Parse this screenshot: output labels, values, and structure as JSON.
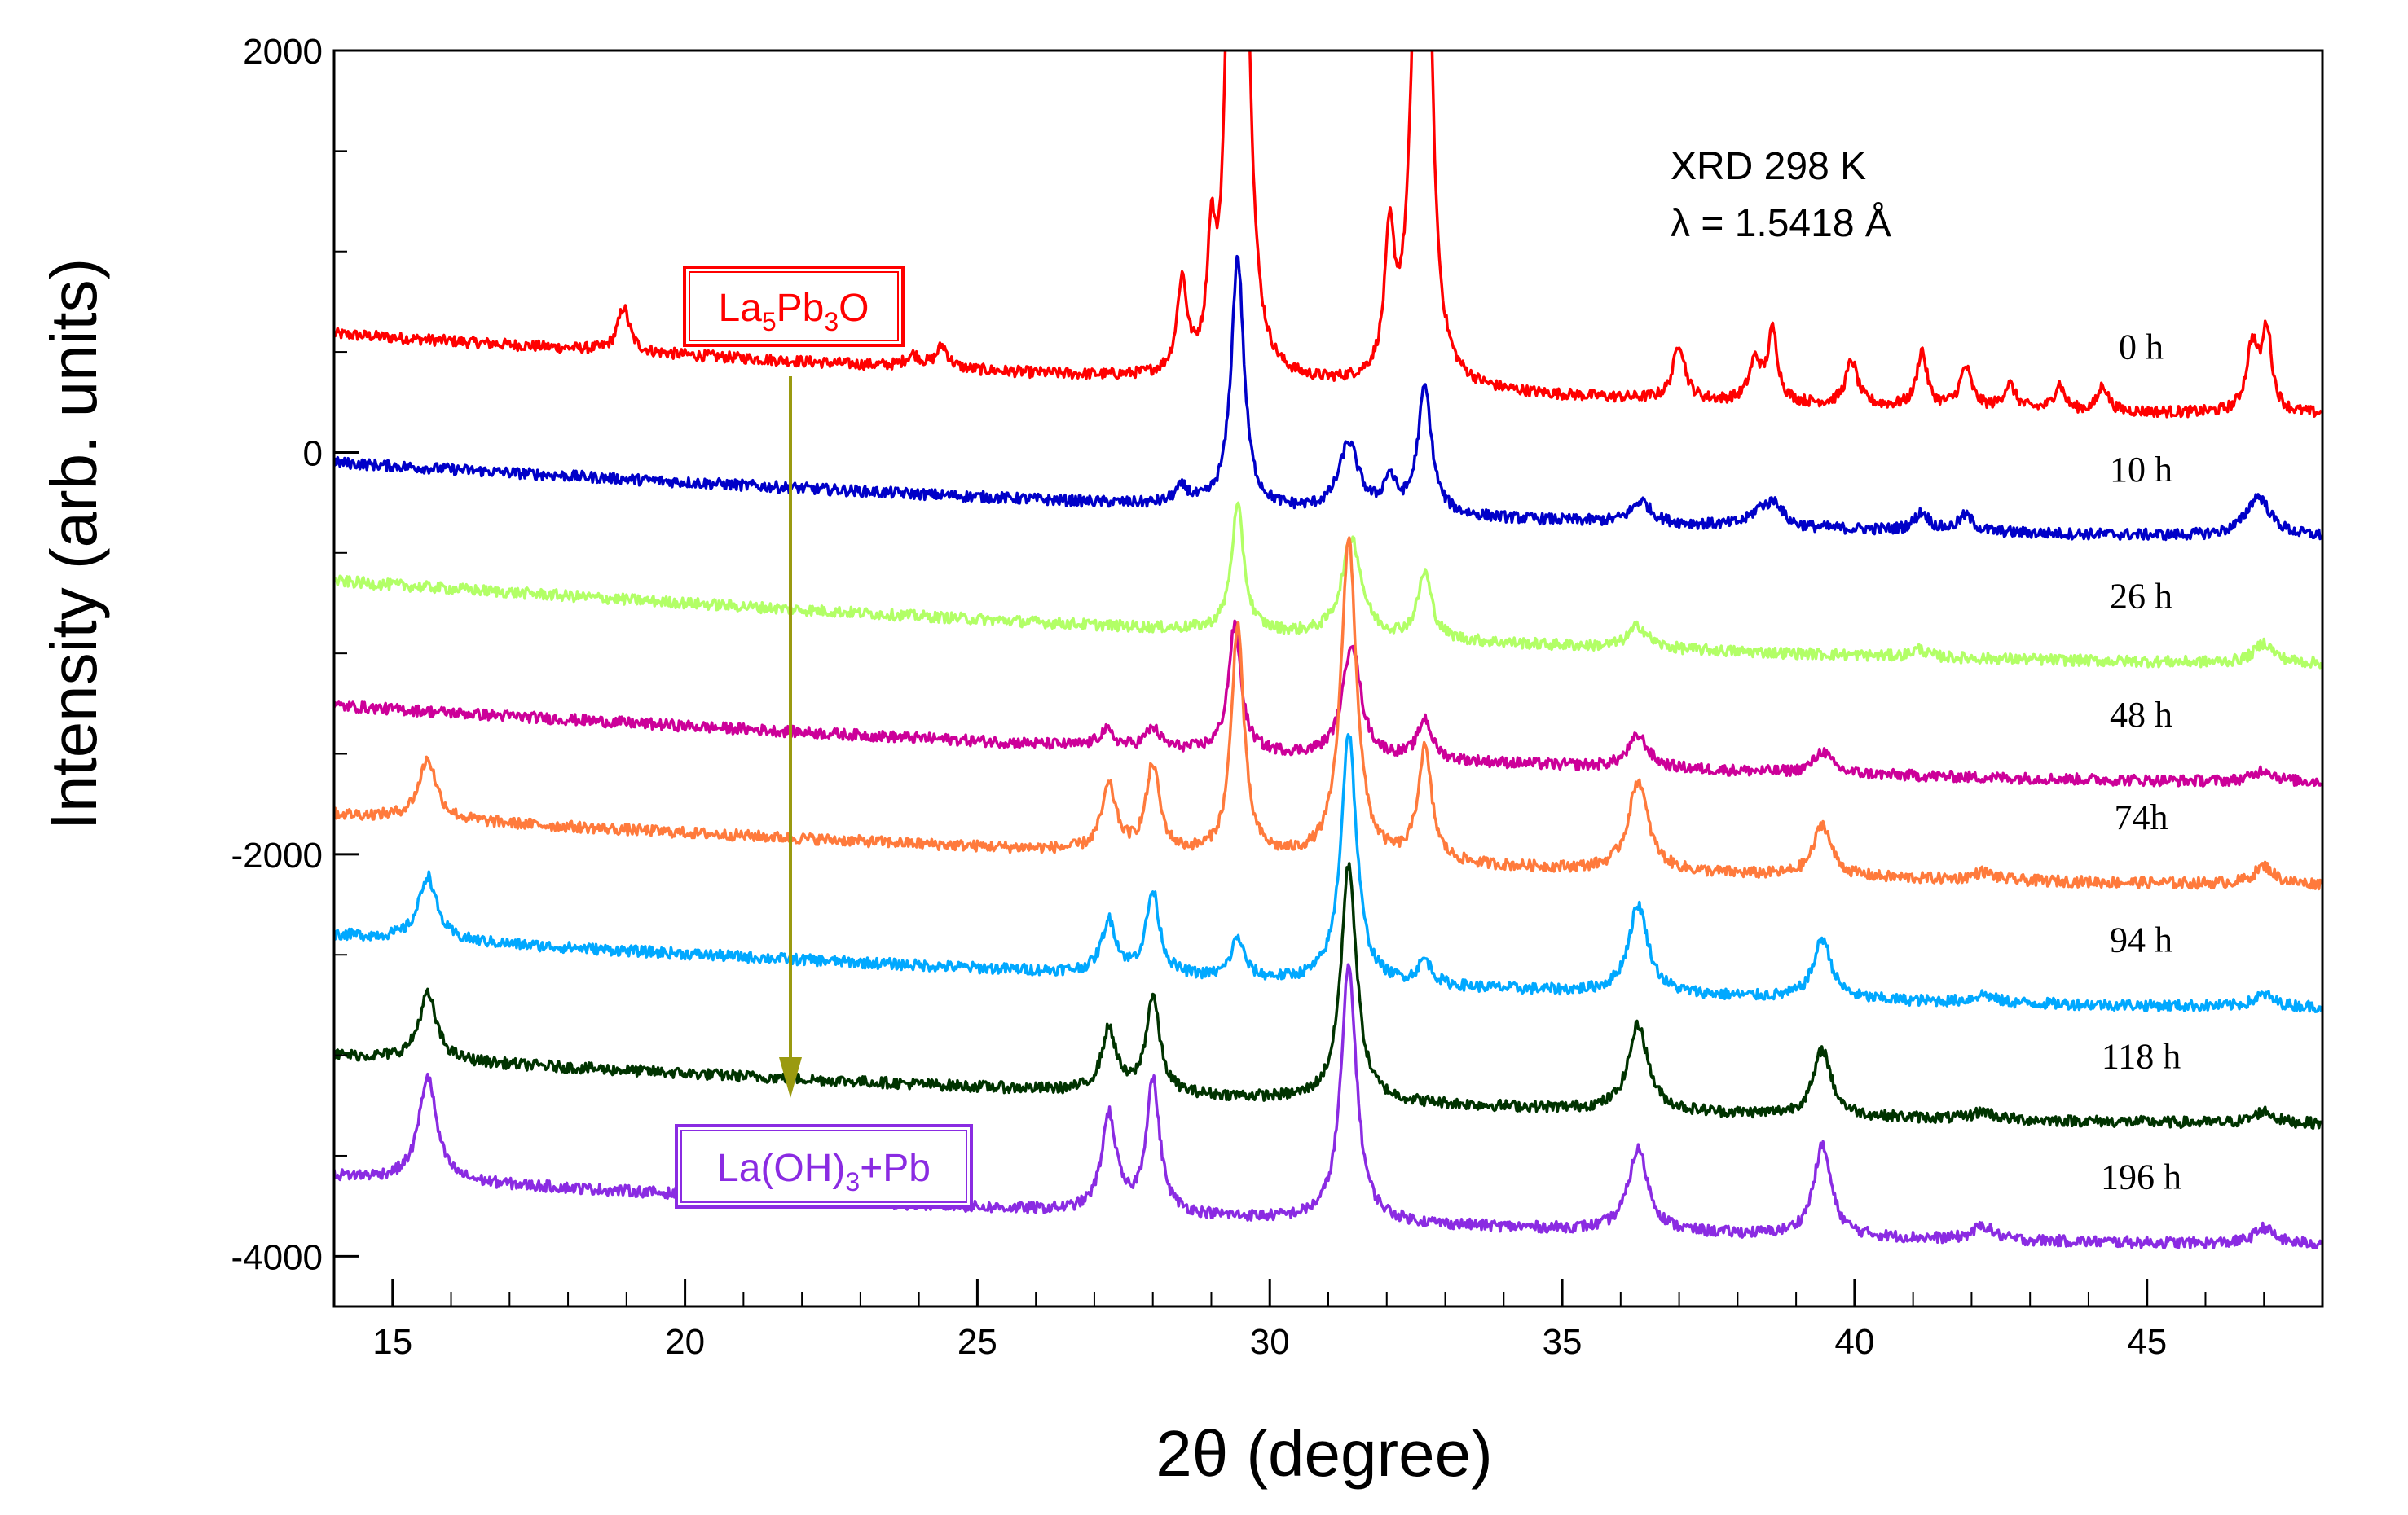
{
  "chart_data": {
    "type": "line",
    "title": "",
    "xlabel": "2θ (degree)",
    "ylabel": "Intensity (arb. units)",
    "xlim": [
      14,
      48
    ],
    "ylim": [
      -4250,
      2000
    ],
    "x_ticks": [
      15,
      20,
      25,
      30,
      35,
      40,
      45
    ],
    "y_ticks": [
      2000,
      0,
      -2000,
      -4000
    ],
    "annotation": {
      "line1": "XRD 298 K",
      "line2": "λ =  1.5418 Å"
    },
    "phase_labels": {
      "start": {
        "base": "La",
        "sub1": "5",
        "mid": "Pb",
        "sub2": "3",
        "end": "O",
        "color": "#ff0000"
      },
      "end": {
        "base": "La(OH)",
        "sub1": "3",
        "end": "+Pb",
        "color": "#8a2be2"
      }
    },
    "arrow_color": "#9a9a10",
    "series": [
      {
        "name": "0 h",
        "color": "#ff0000",
        "baseline_start": 590,
        "baseline_end": 190,
        "peaks": [
          [
            18.95,
            220,
            0.12
          ],
          [
            23.9,
            60,
            0.15
          ],
          [
            24.4,
            110,
            0.12
          ],
          [
            28.5,
            450,
            0.1
          ],
          [
            29.0,
            550,
            0.08
          ],
          [
            29.35,
            2800,
            0.1
          ],
          [
            29.55,
            2600,
            0.12
          ],
          [
            32.05,
            650,
            0.1
          ],
          [
            32.55,
            2600,
            0.14
          ],
          [
            32.7,
            1500,
            0.1
          ],
          [
            37.0,
            280,
            0.12
          ],
          [
            38.3,
            200,
            0.12
          ],
          [
            38.6,
            350,
            0.1
          ],
          [
            39.95,
            220,
            0.12
          ],
          [
            41.15,
            280,
            0.1
          ],
          [
            41.9,
            200,
            0.12
          ],
          [
            42.65,
            120,
            0.12
          ],
          [
            43.5,
            130,
            0.1
          ],
          [
            44.25,
            130,
            0.1
          ],
          [
            46.8,
            330,
            0.12
          ],
          [
            47.05,
            400,
            0.1
          ]
        ]
      },
      {
        "name": "10 h",
        "color": "#0000c8",
        "baseline_start": -50,
        "baseline_end": -420,
        "peaks": [
          [
            28.5,
            80,
            0.15
          ],
          [
            29.45,
            1250,
            0.13
          ],
          [
            31.35,
            340,
            0.2
          ],
          [
            32.05,
            160,
            0.12
          ],
          [
            32.65,
            630,
            0.14
          ],
          [
            36.35,
            110,
            0.2
          ],
          [
            38.4,
            80,
            0.2
          ],
          [
            38.65,
            100,
            0.15
          ],
          [
            41.15,
            90,
            0.15
          ],
          [
            41.9,
            80,
            0.15
          ],
          [
            46.9,
            200,
            0.25
          ]
        ]
      },
      {
        "name": "26 h",
        "color": "#b2ff66",
        "baseline_start": -640,
        "baseline_end": -1050,
        "peaks": [
          [
            29.45,
            620,
            0.13
          ],
          [
            31.4,
            490,
            0.2
          ],
          [
            32.65,
            330,
            0.14
          ],
          [
            36.3,
            110,
            0.2
          ],
          [
            41.1,
            40,
            0.15
          ],
          [
            47.0,
            100,
            0.2
          ]
        ]
      },
      {
        "name": "48 h",
        "color": "#cc0099",
        "baseline_start": -1260,
        "baseline_end": -1640,
        "peaks": [
          [
            27.2,
            80,
            0.15
          ],
          [
            28.0,
            100,
            0.15
          ],
          [
            29.4,
            630,
            0.13
          ],
          [
            31.4,
            570,
            0.18
          ],
          [
            32.65,
            200,
            0.14
          ],
          [
            36.3,
            160,
            0.2
          ],
          [
            39.45,
            110,
            0.18
          ],
          [
            47.0,
            60,
            0.2
          ]
        ]
      },
      {
        "name": "74h",
        "color": "#ff7a3c",
        "baseline_start": -1800,
        "baseline_end": -2150,
        "peaks": [
          [
            15.6,
            300,
            0.18
          ],
          [
            27.25,
            320,
            0.15
          ],
          [
            28.0,
            430,
            0.14
          ],
          [
            29.45,
            1150,
            0.13
          ],
          [
            31.35,
            1600,
            0.16
          ],
          [
            32.65,
            560,
            0.14
          ],
          [
            36.3,
            450,
            0.2
          ],
          [
            39.45,
            260,
            0.18
          ],
          [
            42.2,
            40,
            0.2
          ],
          [
            47.0,
            90,
            0.2
          ]
        ]
      },
      {
        "name": "94 h",
        "color": "#00a8ff",
        "baseline_start": -2400,
        "baseline_end": -2760,
        "peaks": [
          [
            15.6,
            320,
            0.18
          ],
          [
            27.25,
            260,
            0.15
          ],
          [
            28.0,
            410,
            0.14
          ],
          [
            29.45,
            200,
            0.13
          ],
          [
            31.35,
            1250,
            0.16
          ],
          [
            32.65,
            120,
            0.14
          ],
          [
            36.3,
            440,
            0.2
          ],
          [
            39.45,
            300,
            0.18
          ],
          [
            42.2,
            40,
            0.2
          ],
          [
            47.0,
            60,
            0.2
          ]
        ]
      },
      {
        "name": "118 h",
        "color": "#003300",
        "baseline_start": -3000,
        "baseline_end": -3340,
        "peaks": [
          [
            15.6,
            330,
            0.18
          ],
          [
            27.25,
            310,
            0.15
          ],
          [
            28.0,
            480,
            0.14
          ],
          [
            31.35,
            1180,
            0.16
          ],
          [
            36.3,
            430,
            0.2
          ],
          [
            39.45,
            330,
            0.18
          ],
          [
            42.2,
            40,
            0.2
          ],
          [
            47.0,
            60,
            0.2
          ]
        ]
      },
      {
        "name": "196 h",
        "color": "#8a2be2",
        "baseline_start": -3600,
        "baseline_end": -3940,
        "peaks": [
          [
            15.6,
            520,
            0.18
          ],
          [
            27.25,
            480,
            0.15
          ],
          [
            28.0,
            660,
            0.14
          ],
          [
            31.35,
            1270,
            0.16
          ],
          [
            36.3,
            410,
            0.2
          ],
          [
            39.45,
            450,
            0.18
          ],
          [
            42.2,
            70,
            0.2
          ],
          [
            47.0,
            80,
            0.2
          ]
        ]
      }
    ]
  }
}
